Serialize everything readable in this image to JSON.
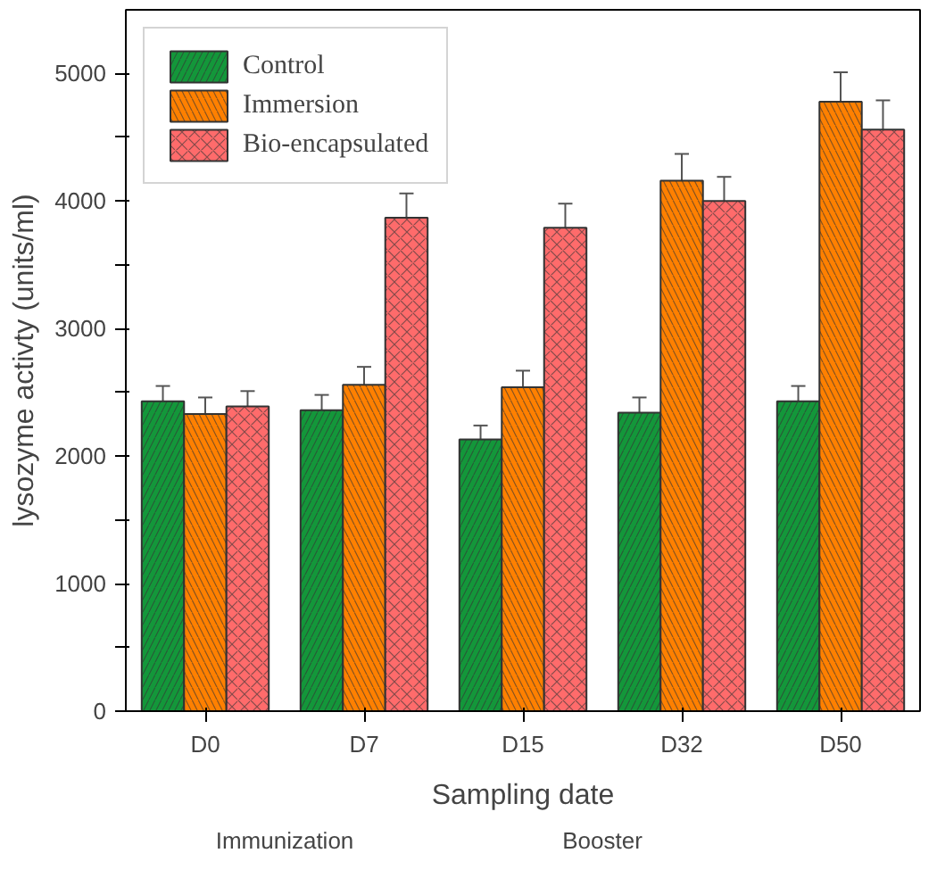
{
  "chart_data": {
    "type": "bar",
    "xlabel": "Sampling date",
    "ylabel": "lysozyme activty (units/ml)",
    "categories": [
      "D0",
      "D7",
      "D15",
      "D32",
      "D50"
    ],
    "series": [
      {
        "name": "Control",
        "color": "#13973a",
        "values": [
          2430,
          2360,
          2130,
          2340,
          2430
        ],
        "errors": [
          120,
          120,
          110,
          120,
          120
        ]
      },
      {
        "name": "Immersion",
        "color": "#ff8000",
        "values": [
          2330,
          2560,
          2540,
          4160,
          4780
        ],
        "errors": [
          130,
          140,
          130,
          210,
          230
        ]
      },
      {
        "name": "Bio-encapsulated",
        "color": "#ff6b6b",
        "values": [
          2390,
          3870,
          3790,
          4000,
          4560
        ],
        "errors": [
          120,
          190,
          190,
          190,
          230
        ]
      }
    ],
    "ylim": [
      0,
      5500
    ],
    "yticks": [
      0,
      {
        "value": 500,
        "label": null
      },
      1000,
      {
        "value": 1500,
        "label": null
      },
      2000,
      {
        "value": 2500,
        "label": null
      },
      3000,
      {
        "value": 3500,
        "label": null
      },
      4000,
      {
        "value": 4500,
        "label": null
      },
      5000
    ],
    "annotations": [
      "Immunization",
      "Booster"
    ],
    "legend": "top left",
    "grid": false
  }
}
